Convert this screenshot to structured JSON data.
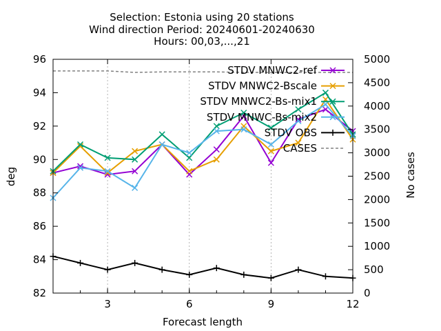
{
  "chart_data": {
    "type": "line",
    "title_lines": [
      "Selection: Estonia using    20 stations",
      "Wind direction   Period: 20240601-20240630",
      "Hours: 00,03,...,21"
    ],
    "xlabel": "Forecast length",
    "ylabel": "deg",
    "y2label": "No cases",
    "xlim": [
      1,
      12
    ],
    "ylim": [
      82,
      96
    ],
    "y2lim": [
      0,
      5000
    ],
    "xticks": [
      3,
      6,
      9,
      12
    ],
    "yticks": [
      82,
      84,
      86,
      88,
      90,
      92,
      94,
      96
    ],
    "y2ticks": [
      0,
      500,
      1000,
      1500,
      2000,
      2500,
      3000,
      3500,
      4000,
      4500,
      5000
    ],
    "grid": "vertical dashed at x ticks",
    "legend_position": "top-right",
    "x": [
      1,
      2,
      3,
      4,
      5,
      6,
      7,
      8,
      9,
      10,
      11,
      12
    ],
    "series": [
      {
        "name": "STDV MNWC2-ref",
        "color": "#9400d3",
        "marker": "x",
        "axis": "y",
        "values": [
          89.2,
          89.6,
          89.1,
          89.3,
          90.9,
          89.1,
          90.6,
          92.6,
          89.8,
          92.4,
          93.0,
          91.7
        ]
      },
      {
        "name": "STDV MNWC2-Bscale",
        "color": "#e69f00",
        "marker": "x",
        "axis": "y",
        "values": [
          89.2,
          90.8,
          89.2,
          90.5,
          90.9,
          89.3,
          90.0,
          92.0,
          90.5,
          91.0,
          93.6,
          91.2
        ]
      },
      {
        "name": "STDV MNWC2-Bs-mix1",
        "color": "#009e73",
        "marker": "x",
        "axis": "y",
        "values": [
          89.3,
          90.9,
          90.1,
          90.0,
          91.5,
          90.1,
          92.0,
          92.8,
          91.9,
          93.0,
          94.0,
          91.5
        ]
      },
      {
        "name": "STDV MNWC-Bs-mix2",
        "color": "#56b4e9",
        "marker": "x",
        "axis": "y",
        "values": [
          87.7,
          89.5,
          89.3,
          88.3,
          90.9,
          90.4,
          91.7,
          91.8,
          90.9,
          92.3,
          93.3,
          91.4
        ]
      },
      {
        "name": "STDV OBS",
        "color": "#000000",
        "marker": "+",
        "axis": "y",
        "values": [
          84.2,
          83.8,
          83.4,
          83.8,
          83.4,
          83.1,
          83.5,
          83.1,
          82.9,
          83.4,
          83.0,
          82.9
        ]
      },
      {
        "name": "CASES",
        "color": "#808080",
        "marker": "none",
        "dash": true,
        "axis": "y2",
        "values": [
          4750,
          4750,
          4750,
          4720,
          4730,
          4730,
          4730,
          4720,
          4720,
          4720,
          4720,
          4720
        ]
      }
    ]
  }
}
